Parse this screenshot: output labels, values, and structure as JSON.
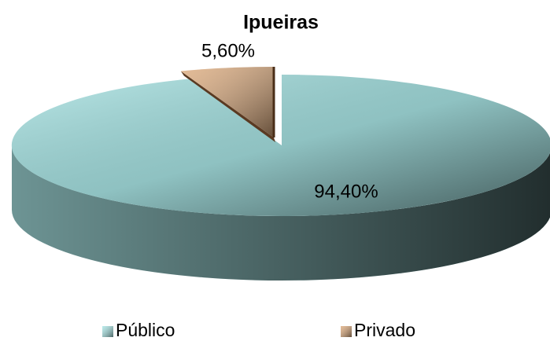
{
  "chart_data": {
    "type": "pie",
    "title": "Ipueiras",
    "categories": [
      "Público",
      "Privado"
    ],
    "values": [
      94.4,
      5.6
    ],
    "value_labels": [
      "94,40%",
      "5,60%"
    ],
    "colors": [
      "#a8e4e4",
      "#dcaa7c"
    ],
    "legend": "bottom"
  }
}
